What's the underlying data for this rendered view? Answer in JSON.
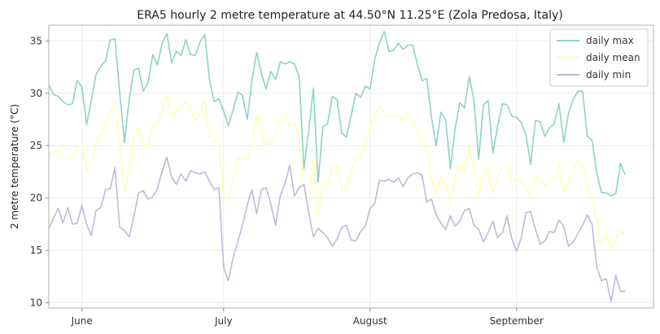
{
  "chart_data": {
    "type": "line",
    "title": "ERA5 hourly 2 metre temperature at 44.50°N 11.25°E (Zola Predosa, Italy)",
    "xlabel": "",
    "ylabel": "2 metre temperature (°C)",
    "x_start": "2023-05-25",
    "x_end": "2023-09-30",
    "xlim": [
      "2023-05-25",
      "2023-09-30"
    ],
    "ylim": [
      9.5,
      36.5
    ],
    "yticks": [
      10,
      15,
      20,
      25,
      30,
      35
    ],
    "xticks": [
      {
        "date": "2023-06-01",
        "label": "June"
      },
      {
        "date": "2023-07-01",
        "label": "July"
      },
      {
        "date": "2023-08-01",
        "label": "August"
      },
      {
        "date": "2023-09-01",
        "label": "September"
      }
    ],
    "grid": true,
    "legend_position": "top-right",
    "series": [
      {
        "name": "daily max",
        "color": "#8dd3c7",
        "values": [
          30.8,
          29.9,
          29.7,
          29.2,
          28.9,
          29.0,
          31.2,
          30.6,
          27.0,
          29.3,
          31.8,
          32.6,
          33.1,
          35.1,
          35.2,
          30.1,
          25.3,
          29.4,
          32.2,
          32.4,
          30.2,
          31.0,
          33.7,
          32.7,
          34.8,
          35.7,
          32.9,
          34.0,
          33.6,
          35.1,
          33.7,
          33.6,
          34.9,
          35.6,
          31.3,
          29.2,
          29.5,
          28.3,
          26.9,
          28.4,
          30.1,
          29.8,
          27.5,
          31.2,
          33.9,
          31.9,
          30.4,
          32.1,
          31.3,
          33.0,
          32.8,
          33.0,
          32.8,
          31.6,
          22.8,
          26.4,
          30.5,
          21.5,
          26.8,
          27.1,
          29.7,
          29.4,
          26.2,
          25.8,
          27.9,
          30.0,
          29.6,
          30.7,
          30.4,
          33.2,
          34.8,
          35.9,
          34.0,
          34.1,
          34.8,
          34.2,
          34.6,
          34.6,
          32.8,
          31.2,
          31.4,
          27.7,
          25.0,
          28.2,
          27.5,
          22.8,
          26.6,
          29.1,
          28.6,
          31.6,
          29.3,
          23.7,
          28.9,
          29.3,
          24.3,
          26.8,
          29.0,
          28.9,
          27.8,
          27.7,
          27.2,
          26.0,
          23.2,
          27.4,
          27.3,
          25.9,
          26.7,
          27.1,
          29.0,
          25.3,
          28.1,
          29.4,
          30.2,
          30.2,
          25.9,
          25.5,
          22.4,
          20.5,
          20.5,
          20.2,
          20.4,
          23.3,
          22.2
        ]
      },
      {
        "name": "daily mean",
        "color": "#ffffb3",
        "values": [
          24.2,
          24.3,
          24.6,
          23.9,
          23.6,
          23.8,
          24.9,
          25.0,
          22.5,
          23.0,
          25.3,
          26.0,
          27.1,
          28.2,
          29.1,
          24.9,
          20.6,
          22.6,
          25.7,
          26.7,
          25.1,
          25.0,
          26.9,
          27.1,
          28.4,
          30.0,
          27.6,
          28.6,
          28.5,
          29.2,
          28.6,
          27.4,
          27.9,
          29.3,
          25.8,
          25.5,
          25.4,
          20.0,
          19.9,
          21.7,
          23.8,
          23.8,
          23.7,
          25.5,
          27.9,
          26.4,
          25.0,
          25.4,
          26.1,
          27.8,
          28.0,
          26.8,
          27.2,
          25.8,
          20.9,
          20.1,
          24.0,
          18.3,
          21.3,
          21.3,
          23.1,
          23.2,
          20.7,
          20.6,
          22.4,
          23.9,
          23.9,
          25.4,
          26.8,
          27.9,
          28.8,
          28.1,
          27.8,
          27.9,
          27.9,
          27.4,
          28.0,
          27.4,
          26.3,
          25.2,
          24.7,
          21.8,
          20.4,
          22.0,
          21.3,
          19.7,
          21.8,
          23.4,
          22.5,
          24.9,
          22.4,
          20.3,
          22.3,
          23.0,
          20.4,
          21.9,
          23.1,
          23.3,
          21.5,
          22.0,
          21.5,
          21.0,
          20.3,
          22.1,
          21.9,
          21.0,
          21.9,
          21.8,
          23.2,
          20.5,
          21.7,
          22.6,
          23.5,
          23.3,
          21.1,
          20.0,
          17.8,
          15.6,
          16.5,
          15.1,
          16.1,
          16.9,
          16.4
        ]
      },
      {
        "name": "daily min",
        "color": "#bebada",
        "values": [
          17.1,
          18.1,
          19.0,
          17.6,
          19.1,
          17.5,
          17.6,
          19.3,
          17.5,
          16.4,
          18.8,
          19.1,
          20.8,
          20.9,
          22.9,
          17.2,
          16.9,
          16.3,
          18.2,
          20.5,
          20.7,
          19.9,
          20.1,
          20.9,
          22.6,
          23.9,
          22.0,
          21.3,
          22.3,
          21.6,
          22.6,
          22.4,
          22.3,
          22.5,
          21.6,
          20.8,
          21.0,
          13.4,
          12.1,
          14.3,
          15.8,
          17.4,
          19.3,
          20.8,
          18.5,
          20.8,
          21.0,
          19.4,
          17.4,
          20.2,
          21.4,
          23.1,
          20.2,
          21.0,
          21.3,
          18.6,
          16.3,
          17.1,
          16.7,
          16.2,
          15.4,
          16.1,
          17.2,
          17.4,
          16.0,
          15.9,
          16.8,
          17.3,
          19.0,
          19.5,
          21.7,
          21.6,
          21.8,
          21.5,
          21.9,
          21.1,
          21.9,
          22.3,
          22.4,
          22.2,
          19.6,
          19.9,
          18.4,
          17.6,
          17.0,
          18.3,
          17.3,
          17.8,
          18.8,
          19.0,
          17.4,
          17.0,
          15.8,
          16.7,
          17.8,
          16.2,
          16.7,
          18.3,
          16.1,
          14.9,
          16.2,
          18.6,
          18.7,
          17.0,
          15.6,
          15.9,
          16.8,
          16.7,
          17.9,
          17.3,
          15.4,
          15.8,
          16.6,
          17.4,
          18.4,
          17.5,
          13.4,
          12.1,
          12.3,
          10.1,
          12.6,
          11.1,
          11.1
        ]
      }
    ]
  }
}
